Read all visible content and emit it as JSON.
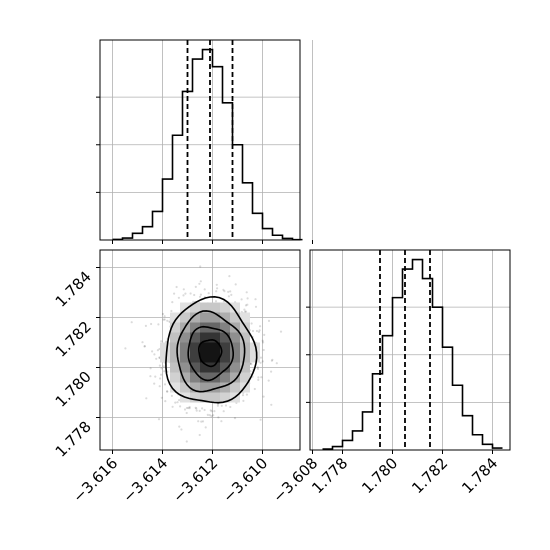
{
  "chart_data": [
    {
      "type": "histogram",
      "panel": "top-left",
      "x_range": [
        -3.6165,
        -3.6085
      ],
      "bin_width": 0.0004,
      "bin_start": -3.616,
      "counts": [
        0.003,
        0.01,
        0.035,
        0.07,
        0.15,
        0.32,
        0.55,
        0.78,
        0.95,
        1.0,
        0.91,
        0.72,
        0.5,
        0.3,
        0.14,
        0.06,
        0.025,
        0.008,
        0.002
      ],
      "quantiles": [
        -3.613,
        -3.6121,
        -3.6112
      ],
      "grid": true
    },
    {
      "type": "heatmap",
      "panel": "bottom-left",
      "x_ticks": [
        "−3.616",
        "−3.614",
        "−3.612",
        "−3.610",
        "−3.608"
      ],
      "x_tick_values": [
        -3.616,
        -3.614,
        -3.612,
        -3.61,
        -3.608
      ],
      "x_range": [
        -3.6165,
        -3.6085
      ],
      "y_ticks": [
        "1.778",
        "1.780",
        "1.782",
        "1.784"
      ],
      "y_tick_values": [
        1.778,
        1.78,
        1.782,
        1.784
      ],
      "y_range": [
        1.7767,
        1.7847
      ],
      "center": [
        -3.6121,
        1.7806
      ],
      "sigma": [
        0.0009,
        0.00105
      ],
      "grid": true
    },
    {
      "type": "histogram",
      "panel": "bottom-right",
      "x_ticks": [
        "1.778",
        "1.780",
        "1.782",
        "1.784"
      ],
      "x_tick_values": [
        1.778,
        1.78,
        1.782,
        1.784
      ],
      "x_range": [
        1.7767,
        1.7847
      ],
      "bin_width": 0.0004,
      "bin_start": 1.7772,
      "counts": [
        0.005,
        0.018,
        0.05,
        0.1,
        0.2,
        0.4,
        0.6,
        0.8,
        0.95,
        1.0,
        0.9,
        0.75,
        0.54,
        0.34,
        0.18,
        0.08,
        0.03,
        0.01
      ],
      "quantiles": [
        1.7795,
        1.7805,
        1.7815
      ],
      "grid": true
    }
  ]
}
